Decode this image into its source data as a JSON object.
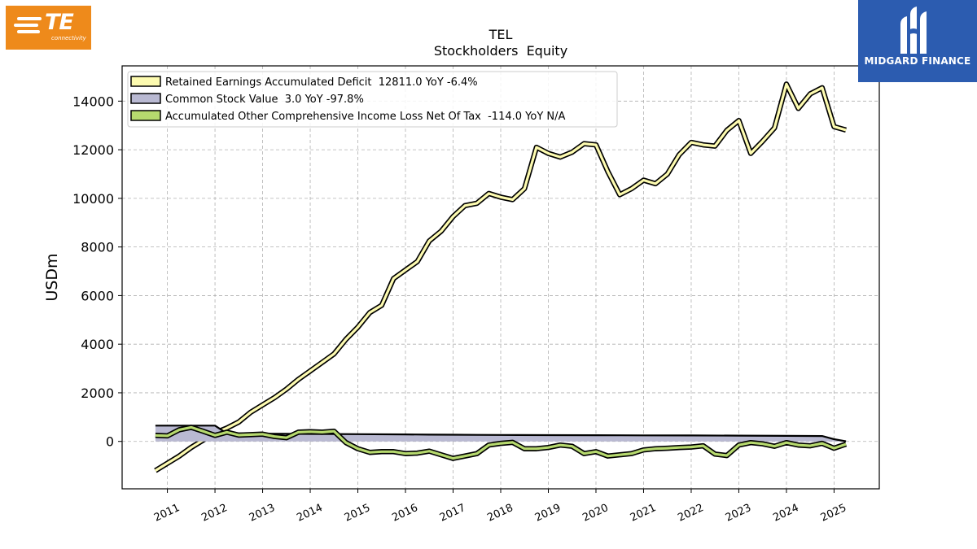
{
  "logos": {
    "left": {
      "mark": "TE",
      "sub": "connectivity",
      "color": "#ee8a1b"
    },
    "right": {
      "text": "MIDGARD FINANCE",
      "color": "#2c5cb0"
    }
  },
  "chart_data": {
    "type": "line",
    "title": "TEL",
    "subtitle": "Stockholders  Equity",
    "ylabel": "USDm",
    "xlabel": "",
    "xlim": [
      2010.05,
      2025.95
    ],
    "ylim": [
      -1950,
      15450
    ],
    "yticks": [
      0,
      2000,
      4000,
      6000,
      8000,
      10000,
      12000,
      14000
    ],
    "xticks": [
      2011,
      2012,
      2013,
      2014,
      2015,
      2016,
      2017,
      2018,
      2019,
      2020,
      2021,
      2022,
      2023,
      2024,
      2025
    ],
    "grid": true,
    "legend_position": "top-left",
    "series": [
      {
        "name": "Retained Earnings Accumulated Deficit",
        "legend_label": "Retained Earnings Accumulated Deficit  12811.0 YoY -6.4%",
        "color": "#fdfbb0",
        "fill": false,
        "x": [
          2010.75,
          2011.0,
          2011.25,
          2011.5,
          2011.75,
          2012.0,
          2012.25,
          2012.5,
          2012.75,
          2013.0,
          2013.25,
          2013.5,
          2013.75,
          2014.0,
          2014.25,
          2014.5,
          2014.75,
          2015.0,
          2015.25,
          2015.5,
          2015.75,
          2016.0,
          2016.25,
          2016.5,
          2016.75,
          2017.0,
          2017.25,
          2017.5,
          2017.75,
          2018.0,
          2018.25,
          2018.5,
          2018.75,
          2019.0,
          2019.25,
          2019.5,
          2019.75,
          2020.0,
          2020.25,
          2020.5,
          2020.75,
          2021.0,
          2021.25,
          2021.5,
          2021.75,
          2022.0,
          2022.25,
          2022.5,
          2022.75,
          2023.0,
          2023.25,
          2023.5,
          2023.75,
          2024.0,
          2024.25,
          2024.5,
          2024.75,
          2025.0,
          2025.25
        ],
        "values": [
          -1200,
          -900,
          -600,
          -250,
          50,
          350,
          550,
          800,
          1200,
          1500,
          1800,
          2150,
          2550,
          2900,
          3250,
          3600,
          4200,
          4700,
          5300,
          5600,
          6700,
          7050,
          7400,
          8250,
          8650,
          9250,
          9700,
          9800,
          10200,
          10050,
          9950,
          10400,
          12100,
          11850,
          11700,
          11900,
          12250,
          12200,
          11100,
          10150,
          10400,
          10750,
          10600,
          11000,
          11800,
          12300,
          12200,
          12150,
          12800,
          13200,
          11850,
          12350,
          12900,
          14700,
          13700,
          14300,
          14550,
          12950,
          12811
        ]
      },
      {
        "name": "Common Stock Value",
        "legend_label": "Common Stock Value  3.0 YoY -97.8%",
        "color": "#b9b9d2",
        "fill": true,
        "x": [
          2010.75,
          2011.0,
          2011.25,
          2011.5,
          2011.75,
          2012.0,
          2012.25,
          2012.5,
          2012.75,
          2013.0,
          2014.0,
          2015.0,
          2016.0,
          2016.5,
          2017.0,
          2017.5,
          2018.0,
          2019.0,
          2020.0,
          2021.0,
          2022.0,
          2023.0,
          2024.0,
          2024.75,
          2025.0,
          2025.25
        ],
        "values": [
          650,
          650,
          650,
          650,
          650,
          650,
          330,
          330,
          330,
          320,
          310,
          300,
          290,
          280,
          275,
          270,
          265,
          260,
          255,
          250,
          245,
          240,
          230,
          220,
          90,
          3
        ]
      },
      {
        "name": "Accumulated Other Comprehensive Income Loss Net Of Tax",
        "legend_label": "Accumulated Other Comprehensive Income Loss Net Of Tax  -114.0 YoY N/A",
        "color": "#b6d96e",
        "fill": false,
        "x": [
          2010.75,
          2011.0,
          2011.25,
          2011.5,
          2011.75,
          2012.0,
          2012.25,
          2012.5,
          2012.75,
          2013.0,
          2013.25,
          2013.5,
          2013.75,
          2014.0,
          2014.25,
          2014.5,
          2014.75,
          2015.0,
          2015.25,
          2015.5,
          2015.75,
          2016.0,
          2016.25,
          2016.5,
          2016.75,
          2017.0,
          2017.25,
          2017.5,
          2017.75,
          2018.0,
          2018.25,
          2018.5,
          2018.75,
          2019.0,
          2019.25,
          2019.5,
          2019.75,
          2020.0,
          2020.25,
          2020.5,
          2020.75,
          2021.0,
          2021.25,
          2021.5,
          2021.75,
          2022.0,
          2022.25,
          2022.5,
          2022.75,
          2023.0,
          2023.25,
          2023.5,
          2023.75,
          2024.0,
          2024.25,
          2024.5,
          2024.75,
          2025.0,
          2025.25
        ],
        "values": [
          250,
          230,
          480,
          580,
          420,
          250,
          380,
          260,
          280,
          300,
          200,
          150,
          380,
          400,
          380,
          420,
          -50,
          -300,
          -450,
          -420,
          -420,
          -500,
          -480,
          -400,
          -550,
          -700,
          -600,
          -500,
          -150,
          -80,
          -40,
          -300,
          -300,
          -250,
          -150,
          -200,
          -500,
          -420,
          -600,
          -550,
          -500,
          -350,
          -300,
          -280,
          -250,
          -230,
          -180,
          -520,
          -580,
          -150,
          -50,
          -100,
          -200,
          -50,
          -150,
          -180,
          -80,
          -280,
          -114
        ]
      }
    ]
  }
}
